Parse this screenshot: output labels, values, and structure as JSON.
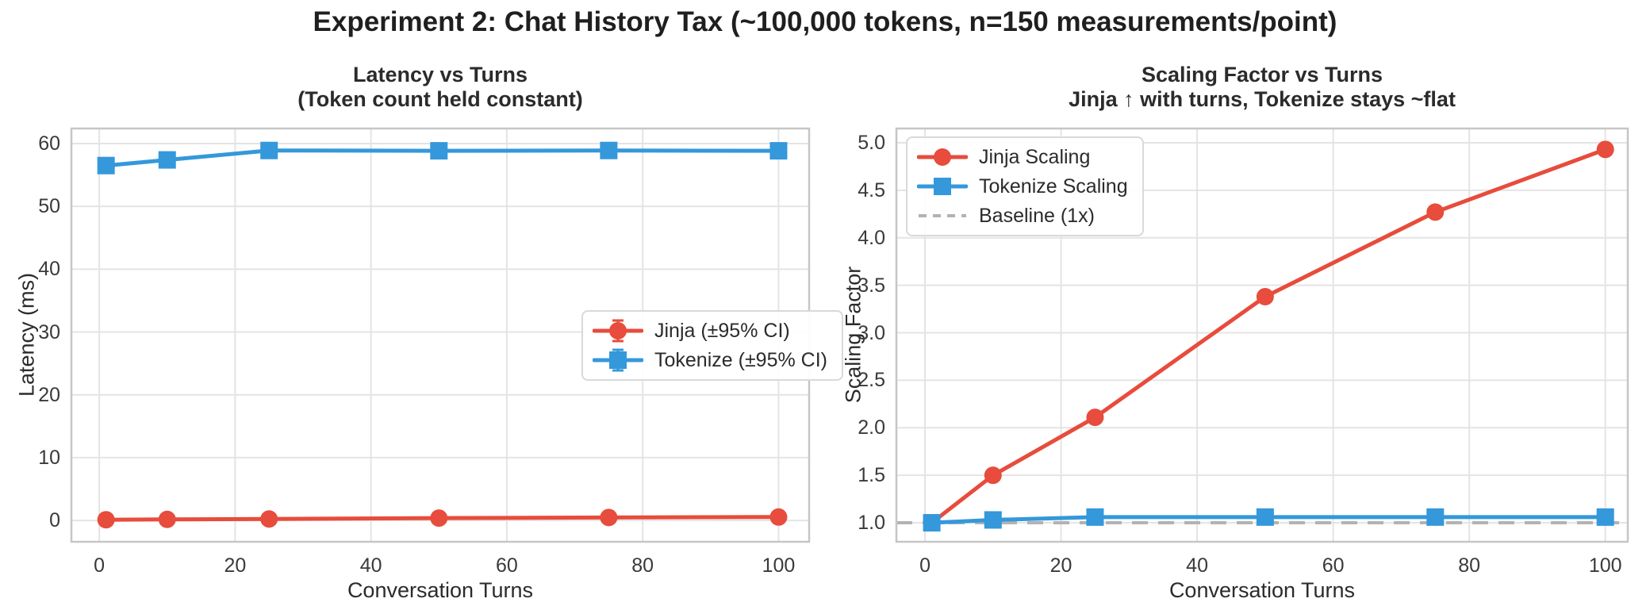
{
  "figure": {
    "title": "Experiment 2: Chat History Tax (~100,000 tokens, n=150 measurements/point)"
  },
  "style": {
    "background": "#ffffff",
    "grid_color": "#e4e4e4",
    "spine_color": "#c6c6c6",
    "title_color": "#1f1f1f",
    "text_color": "#2b2b2b",
    "tick_color": "#3a3a3a",
    "jinja_color": "#e74c3c",
    "tokenize_color": "#3498db",
    "baseline_color": "#b3b3b3"
  },
  "chart_data": [
    {
      "type": "line",
      "title": "Latency vs Turns",
      "subtitle": "(Token count held constant)",
      "xlabel": "Conversation Turns",
      "ylabel": "Latency (ms)",
      "x": [
        1,
        10,
        25,
        50,
        75,
        100
      ],
      "xticks": [
        0,
        20,
        40,
        60,
        80,
        100
      ],
      "xtick_labels": [
        "0",
        "20",
        "40",
        "60",
        "80",
        "100"
      ],
      "yticks": [
        0,
        10,
        20,
        30,
        40,
        50,
        60
      ],
      "ytick_labels": [
        "0",
        "10",
        "20",
        "30",
        "40",
        "50",
        "60"
      ],
      "xlim": [
        -4.1,
        104.5
      ],
      "ylim": [
        -3.4,
        62.4
      ],
      "grid": true,
      "legend_position": "center right",
      "series": [
        {
          "name": "Jinja (±95% CI)",
          "color": "#e74c3c",
          "marker": "circle",
          "errorbars": true,
          "values": [
            0.11,
            0.17,
            0.23,
            0.37,
            0.47,
            0.54
          ],
          "ci": [
            0.02,
            0.02,
            0.02,
            0.03,
            0.03,
            0.03
          ]
        },
        {
          "name": "Tokenize (±95% CI)",
          "color": "#3498db",
          "marker": "square",
          "errorbars": true,
          "values": [
            56.5,
            57.4,
            58.9,
            58.85,
            58.9,
            58.85
          ],
          "ci": [
            0.6,
            0.6,
            0.5,
            0.5,
            0.5,
            0.5
          ]
        }
      ]
    },
    {
      "type": "line",
      "title": "Scaling Factor vs Turns",
      "subtitle": "Jinja ↑ with turns, Tokenize stays ~flat",
      "xlabel": "Conversation Turns",
      "ylabel": "Scaling Factor",
      "x": [
        1,
        10,
        25,
        50,
        75,
        100
      ],
      "xticks": [
        0,
        20,
        40,
        60,
        80,
        100
      ],
      "xtick_labels": [
        "0",
        "20",
        "40",
        "60",
        "80",
        "100"
      ],
      "yticks": [
        1.0,
        1.5,
        2.0,
        2.5,
        3.0,
        3.5,
        4.0,
        4.5,
        5.0
      ],
      "ytick_labels": [
        "1.0",
        "1.5",
        "2.0",
        "2.5",
        "3.0",
        "3.5",
        "4.0",
        "4.5",
        "5.0"
      ],
      "xlim": [
        -4.2,
        103.3
      ],
      "ylim": [
        0.8,
        5.15
      ],
      "grid": true,
      "legend_position": "upper left",
      "baseline": {
        "label": "Baseline (1x)",
        "value": 1.0,
        "color": "#b3b3b3"
      },
      "series": [
        {
          "name": "Jinja Scaling",
          "color": "#e74c3c",
          "marker": "circle",
          "errorbars": false,
          "values": [
            1.0,
            1.5,
            2.11,
            3.38,
            4.27,
            4.93
          ]
        },
        {
          "name": "Tokenize Scaling",
          "color": "#3498db",
          "marker": "square",
          "errorbars": false,
          "values": [
            1.0,
            1.03,
            1.06,
            1.06,
            1.06,
            1.06
          ]
        }
      ]
    }
  ]
}
